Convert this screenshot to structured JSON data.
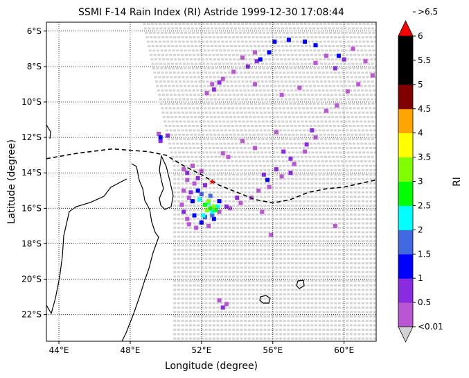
{
  "chart_data": {
    "type": "heatmap",
    "title": "SSMI F-14 Rain Index (RI) Astride 1999-12-30 17:08:44",
    "xlabel": "Longitude (degree)",
    "ylabel": "Latitude (degree)",
    "colorbar_label": "RI",
    "xlim": [
      43.3,
      61.8
    ],
    "ylim": [
      -23.5,
      -5.5
    ],
    "grid": true,
    "x_ticks": [
      {
        "value": 44,
        "label": "44°E"
      },
      {
        "value": 48,
        "label": "48°E"
      },
      {
        "value": 52,
        "label": "52°E"
      },
      {
        "value": 56,
        "label": "56°E"
      },
      {
        "value": 60,
        "label": "60°E"
      }
    ],
    "y_ticks": [
      {
        "value": -6,
        "label": "6°S"
      },
      {
        "value": -8,
        "label": "8°S"
      },
      {
        "value": -10,
        "label": "10°S"
      },
      {
        "value": -12,
        "label": "12°S"
      },
      {
        "value": -14,
        "label": "14°S"
      },
      {
        "value": -16,
        "label": "16°S"
      },
      {
        "value": -18,
        "label": "18°S"
      },
      {
        "value": -20,
        "label": "20°S"
      },
      {
        "value": -22,
        "label": "22°S"
      }
    ],
    "colorbar": {
      "bins": [
        {
          "label": "<0.01",
          "color": "#d3d3d3"
        },
        {
          "label": "0.5",
          "color": "#ba55d3"
        },
        {
          "label": "1",
          "color": "#8a2be2"
        },
        {
          "label": "1.5",
          "color": "#0000ff"
        },
        {
          "label": "2",
          "color": "#4169e1"
        },
        {
          "label": "2.5",
          "color": "#00ffff"
        },
        {
          "label": "3",
          "color": "#00ff00"
        },
        {
          "label": "3.5",
          "color": "#7fff00"
        },
        {
          "label": "4",
          "color": "#ffff00"
        },
        {
          "label": "4.5",
          "color": "#ffa500"
        },
        {
          "label": "5",
          "color": "#800000"
        },
        {
          "label": "5.5",
          "color": "#000000"
        },
        {
          "label": "6",
          "color": "#000000"
        },
        {
          "label": ">6.5",
          "color": "#ff0000"
        }
      ],
      "under_color": "#d3d3d3",
      "over_color": "#ff0000"
    },
    "swath": {
      "lon_left_top": 48.8,
      "lon_left_bottom": 50.5,
      "lon_right": 61.8,
      "lat_top": -5.6,
      "lat_bottom": -23.4,
      "fill": "#d3d3d3"
    },
    "track": [
      [
        43.3,
        -13.2
      ],
      [
        45,
        -12.9
      ],
      [
        47,
        -12.65
      ],
      [
        49,
        -12.8
      ],
      [
        50,
        -13.0
      ],
      [
        51,
        -13.6
      ],
      [
        52,
        -14.1
      ],
      [
        53,
        -14.7
      ],
      [
        54,
        -15.1
      ],
      [
        55,
        -15.5
      ],
      [
        56,
        -15.7
      ],
      [
        57,
        -15.5
      ],
      [
        58,
        -15.1
      ],
      [
        59,
        -14.9
      ],
      [
        60,
        -14.8
      ],
      [
        61.8,
        -14.4
      ]
    ],
    "storm_center": {
      "lon": 52.6,
      "lat": -14.5
    },
    "rain_bands": [
      {
        "label": "0.5",
        "points": [
          [
            51.0,
            -13.8
          ],
          [
            51.5,
            -13.6
          ],
          [
            52.0,
            -13.9
          ],
          [
            51.2,
            -14.4
          ],
          [
            51.6,
            -14.6
          ],
          [
            51.0,
            -15.0
          ],
          [
            51.3,
            -15.4
          ],
          [
            50.9,
            -15.8
          ],
          [
            51.2,
            -16.6
          ],
          [
            51.7,
            -17.1
          ],
          [
            52.4,
            -17.0
          ],
          [
            53.0,
            -16.2
          ],
          [
            53.6,
            -16.0
          ],
          [
            54.2,
            -15.7
          ],
          [
            54.8,
            -15.4
          ],
          [
            55.2,
            -15.0
          ],
          [
            55.8,
            -14.8
          ],
          [
            56.5,
            -14.2
          ],
          [
            57.2,
            -13.5
          ],
          [
            57.8,
            -12.8
          ],
          [
            58.4,
            -12.0
          ],
          [
            59.0,
            -10.5
          ],
          [
            59.6,
            -10.2
          ],
          [
            60.2,
            -9.4
          ],
          [
            60.8,
            -9.0
          ],
          [
            61.2,
            -7.7
          ],
          [
            61.6,
            -8.5
          ],
          [
            60.5,
            -7.0
          ],
          [
            59.0,
            -7.4
          ],
          [
            58.4,
            -7.8
          ],
          [
            55.0,
            -7.2
          ],
          [
            54.3,
            -7.5
          ],
          [
            53.8,
            -8.3
          ],
          [
            53.2,
            -8.7
          ],
          [
            52.6,
            -9.0
          ],
          [
            52.3,
            -9.5
          ],
          [
            55.0,
            -9.0
          ],
          [
            56.5,
            -9.6
          ],
          [
            57.5,
            -9.2
          ],
          [
            54.3,
            -12.2
          ],
          [
            55.0,
            -12.6
          ],
          [
            56.2,
            -11.7
          ],
          [
            53.2,
            -12.9
          ],
          [
            53.5,
            -13.1
          ],
          [
            59.5,
            -17.0
          ],
          [
            49.6,
            -11.8
          ],
          [
            52.2,
            -16.5
          ],
          [
            51.3,
            -16.9
          ],
          [
            53.0,
            -21.2
          ],
          [
            53.4,
            -21.4
          ],
          [
            55.4,
            -16.2
          ],
          [
            55.9,
            -17.5
          ]
        ]
      },
      {
        "label": "1",
        "points": [
          [
            51.2,
            -14.0
          ],
          [
            51.8,
            -14.3
          ],
          [
            52.2,
            -14.7
          ],
          [
            51.4,
            -15.1
          ],
          [
            51.0,
            -16.2
          ],
          [
            53.4,
            -15.9
          ],
          [
            54.0,
            -15.4
          ],
          [
            55.5,
            -14.1
          ],
          [
            56.2,
            -13.8
          ],
          [
            57.0,
            -13.2
          ],
          [
            57.9,
            -12.4
          ],
          [
            58.2,
            -11.6
          ],
          [
            56.6,
            -12.8
          ],
          [
            59.5,
            -8.1
          ],
          [
            60.0,
            -7.6
          ],
          [
            54.6,
            -8.0
          ],
          [
            55.1,
            -7.7
          ],
          [
            53.0,
            -8.9
          ],
          [
            52.7,
            -9.3
          ],
          [
            49.7,
            -12.2
          ],
          [
            50.1,
            -11.9
          ],
          [
            53.2,
            -21.6
          ],
          [
            57.0,
            -14.0
          ]
        ]
      },
      {
        "label": "1.5",
        "points": [
          [
            51.8,
            -15.0
          ],
          [
            51.5,
            -15.6
          ],
          [
            51.6,
            -16.4
          ],
          [
            52.0,
            -16.8
          ],
          [
            52.7,
            -16.6
          ],
          [
            53.0,
            -15.6
          ],
          [
            56.1,
            -6.6
          ],
          [
            56.9,
            -6.5
          ],
          [
            57.8,
            -6.6
          ],
          [
            58.4,
            -6.8
          ],
          [
            55.3,
            -7.6
          ],
          [
            55.8,
            -7.2
          ],
          [
            59.7,
            -7.4
          ],
          [
            55.7,
            -14.4
          ],
          [
            49.7,
            -12.0
          ]
        ]
      },
      {
        "label": "2",
        "points": [
          [
            52.0,
            -15.2
          ],
          [
            52.5,
            -15.3
          ],
          [
            52.2,
            -16.5
          ],
          [
            52.6,
            -16.4
          ]
        ]
      },
      {
        "label": "2.5",
        "points": [
          [
            51.9,
            -15.5
          ],
          [
            52.4,
            -15.7
          ],
          [
            52.9,
            -15.9
          ],
          [
            52.1,
            -16.4
          ],
          [
            52.6,
            -16.2
          ]
        ]
      },
      {
        "label": "3",
        "points": [
          [
            52.2,
            -15.8
          ],
          [
            52.5,
            -16.0
          ],
          [
            52.8,
            -16.1
          ]
        ]
      },
      {
        "label": "3.5",
        "points": [
          [
            52.3,
            -16.1
          ],
          [
            52.7,
            -15.9
          ],
          [
            52.4,
            -15.6
          ]
        ]
      }
    ],
    "coastline_labels": []
  }
}
